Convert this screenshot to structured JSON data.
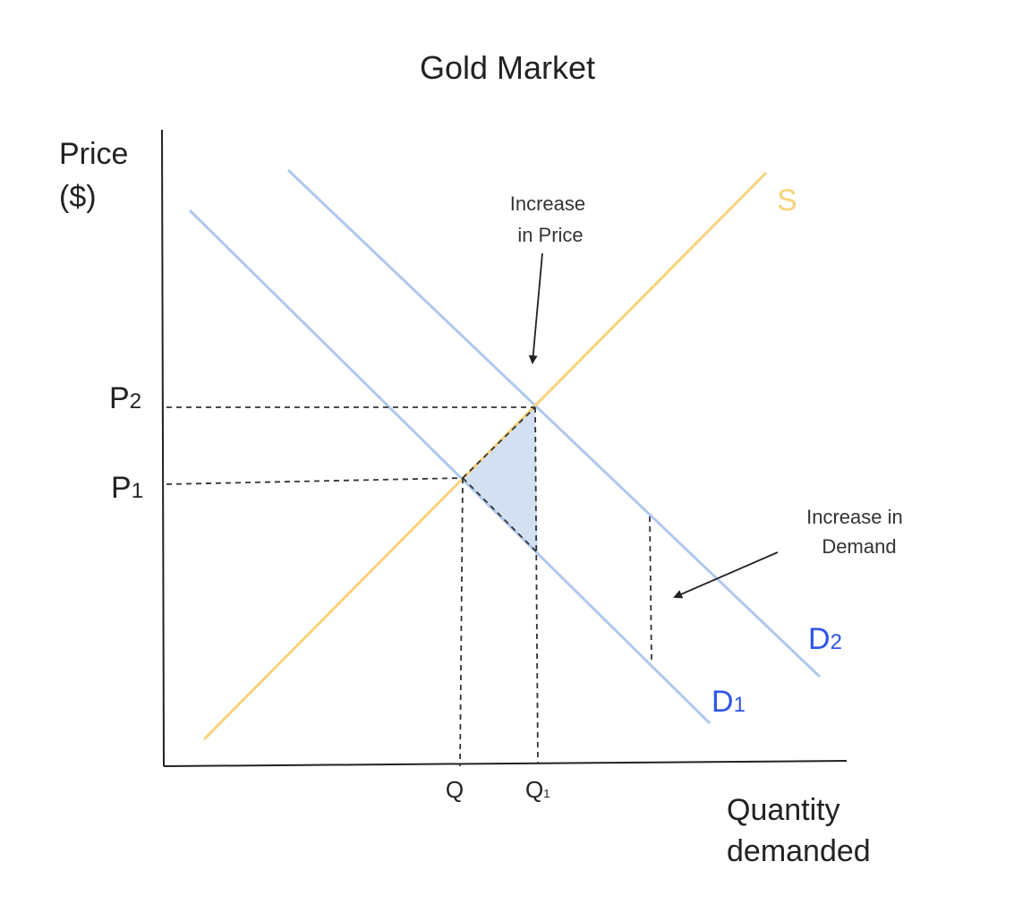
{
  "title": "Gold Market",
  "y_axis": {
    "line1": "Price",
    "line2": "($)"
  },
  "x_axis": {
    "line1": "Quantity",
    "line2": "demanded"
  },
  "price_labels": {
    "p2": {
      "base": "P",
      "sub": "2"
    },
    "p1": {
      "base": "P",
      "sub": "1"
    }
  },
  "quantity_labels": {
    "q": "Q",
    "q1": {
      "base": "Q",
      "sub": "1"
    }
  },
  "curve_labels": {
    "supply": "S",
    "d1": {
      "base": "D",
      "sub": "1"
    },
    "d2": {
      "base": "D",
      "sub": "2"
    }
  },
  "annotations": {
    "price_increase": {
      "line1": "Increase",
      "line2": "in Price"
    },
    "demand_increase": {
      "line1": "Increase in",
      "line2": "Demand"
    }
  },
  "colors": {
    "supply": "#F9D27A",
    "demand": "#AFC8EC",
    "demand_label": "#2F56E8",
    "shade": "#D2E0F2",
    "axis": "#222222",
    "text": "#222222"
  }
}
